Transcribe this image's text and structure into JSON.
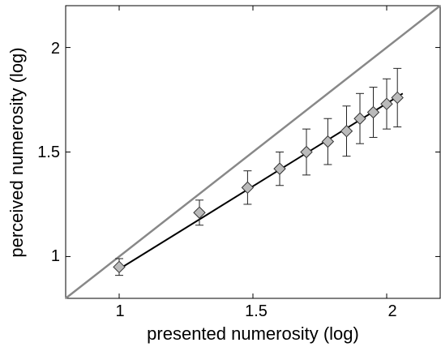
{
  "chart_data": {
    "type": "scatter",
    "title": "",
    "xlabel": "presented numerosity (log)",
    "ylabel": "perceived numerosity (log)",
    "xlim": [
      0.8,
      2.2
    ],
    "ylim": [
      0.8,
      2.2
    ],
    "xticks": [
      1,
      1.5,
      2
    ],
    "yticks": [
      1,
      1.5,
      2
    ],
    "x_tick_labels": [
      "1",
      "1.5",
      "2"
    ],
    "y_tick_labels": [
      "1",
      "1.5",
      "2"
    ],
    "grid": false,
    "legend": "none",
    "series": [
      {
        "type": "scatter-errorbar",
        "marker": "diamond",
        "x": [
          1.0,
          1.3,
          1.48,
          1.6,
          1.7,
          1.78,
          1.85,
          1.9,
          1.95,
          2.0,
          2.04
        ],
        "y": [
          0.95,
          1.21,
          1.33,
          1.42,
          1.5,
          1.55,
          1.6,
          1.66,
          1.69,
          1.73,
          1.76
        ],
        "y_err": [
          0.04,
          0.06,
          0.08,
          0.08,
          0.11,
          0.11,
          0.12,
          0.12,
          0.12,
          0.12,
          0.14
        ],
        "color": "#bbbbbb",
        "edge_color": "#333333"
      }
    ],
    "fit_line": {
      "x": [
        1.0,
        2.06
      ],
      "y": [
        0.94,
        1.78
      ],
      "color": "#000000"
    },
    "identity_line": {
      "x": [
        0.8,
        2.2
      ],
      "y": [
        0.8,
        2.2
      ],
      "color": "#888888"
    }
  }
}
